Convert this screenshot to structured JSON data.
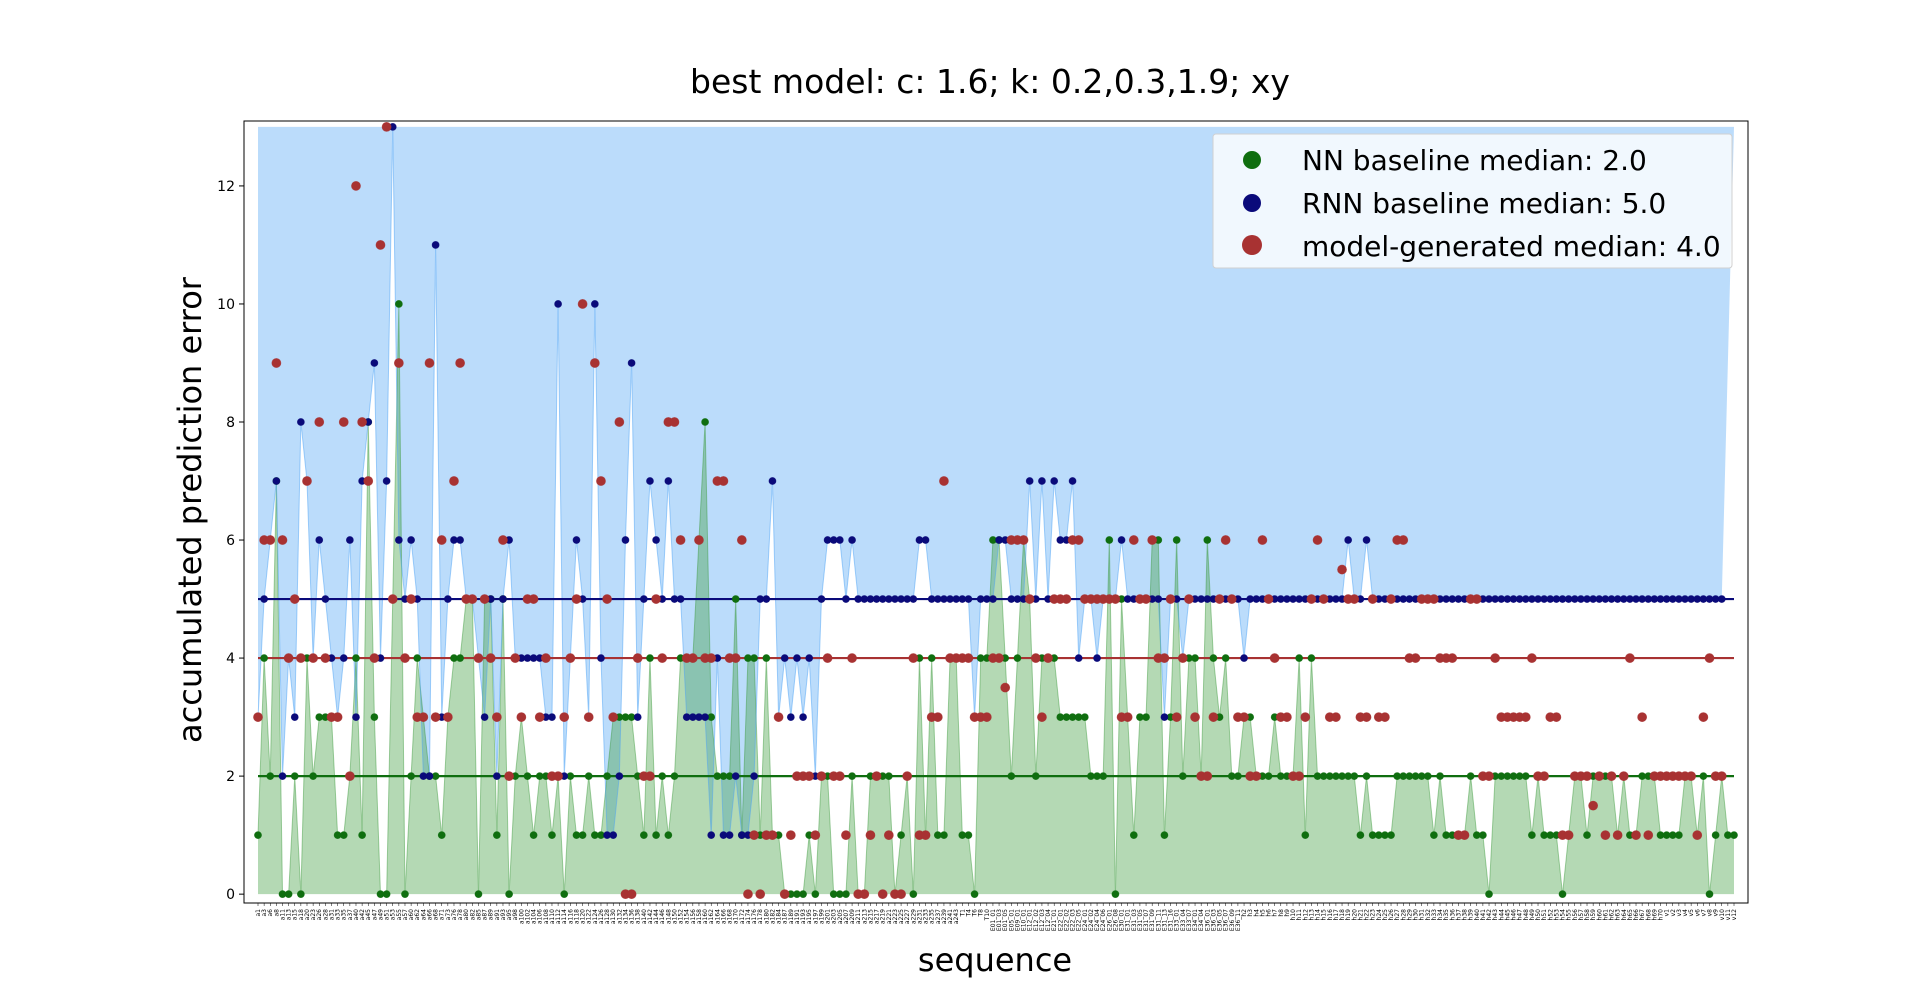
{
  "chart_data": {
    "type": "scatter",
    "title": "best model: c: 1.6; k: 0.2,0.3,1.9; xy",
    "xlabel": "sequence",
    "ylabel": "accumulated prediction error",
    "ylim": [
      -0.15,
      13.1
    ],
    "yticks": [
      0,
      2,
      4,
      6,
      8,
      10,
      12
    ],
    "fill_top": 13,
    "grid": false,
    "legend_position": "top-right",
    "categories": [
      "a1",
      "a3",
      "a6",
      "a8",
      "a11",
      "a13",
      "a15",
      "a18",
      "a20",
      "a23",
      "a26",
      "a28",
      "a31",
      "a33",
      "a35",
      "a37",
      "a40",
      "a42",
      "a45",
      "a47",
      "a49",
      "a51",
      "a53",
      "a55",
      "a57",
      "a60",
      "a62",
      "a64",
      "a66",
      "a68",
      "a71",
      "a73",
      "a76",
      "a78",
      "a80",
      "a82",
      "a85",
      "a87",
      "a89",
      "a91",
      "a93",
      "a95",
      "a98",
      "a100",
      "a102",
      "a104",
      "a106",
      "a108",
      "a110",
      "a112",
      "a114",
      "a116",
      "a118",
      "a120",
      "a122",
      "a124",
      "a126",
      "a128",
      "a130",
      "a132",
      "a134",
      "a136",
      "a138",
      "a140",
      "a142",
      "a144",
      "a146",
      "a148",
      "a150",
      "a152",
      "a154",
      "a156",
      "a158",
      "a160",
      "a162",
      "a164",
      "a166",
      "a168",
      "a170",
      "a172",
      "a174",
      "a176",
      "a178",
      "a180",
      "a182",
      "a184",
      "a187",
      "a189",
      "a191",
      "a193",
      "a195",
      "a197",
      "a199",
      "a201",
      "a203",
      "a205",
      "a207",
      "a209",
      "a211",
      "a213",
      "a215",
      "a217",
      "a219",
      "a221",
      "a223",
      "a225",
      "a227",
      "a229",
      "a231",
      "a233",
      "a235",
      "a237",
      "a239",
      "a241",
      "a243",
      "T1",
      "T4",
      "T6",
      "T8",
      "T10",
      "E01_01",
      "E01_03",
      "E01_05",
      "E05_01",
      "E09_01",
      "E10_01",
      "E12_01",
      "E12_02",
      "E12_03",
      "E12_04",
      "E21_01",
      "E22_01",
      "E22_02",
      "E22_03",
      "E22_05",
      "E24_01",
      "E24_02",
      "E24_04",
      "E24_06",
      "E26_01",
      "E26_08",
      "E30_01",
      "E31_01",
      "E31_03",
      "E31_05",
      "E31_07",
      "E31_09",
      "E31_11",
      "E31_13",
      "E31_16",
      "E33_01",
      "E33_04",
      "E33_07",
      "E34_01",
      "E34_04",
      "E36_01",
      "E36_03",
      "E36_05",
      "E36_07",
      "E36_09",
      "E36_11",
      "h2",
      "h3",
      "h4",
      "h5",
      "h6",
      "h7",
      "h8",
      "h9",
      "h10",
      "h11",
      "h12",
      "h13",
      "h14",
      "h15",
      "h16",
      "h17",
      "h18",
      "h19",
      "h20",
      "h21",
      "h22",
      "h23",
      "h24",
      "h25",
      "h26",
      "h27",
      "h28",
      "h29",
      "h30",
      "h31",
      "h32",
      "h33",
      "h34",
      "h35",
      "h36",
      "h37",
      "h38",
      "h39",
      "h40",
      "h41",
      "h42",
      "h43",
      "h44",
      "h45",
      "h46",
      "h47",
      "h48",
      "h49",
      "h50",
      "h51",
      "h52",
      "h53",
      "h54",
      "h55",
      "h56",
      "h57",
      "h58",
      "h59",
      "h60",
      "h61",
      "h62",
      "h63",
      "h64",
      "h65",
      "h66",
      "h67",
      "h68",
      "h69",
      "h70",
      "v1",
      "v2",
      "v3",
      "v4",
      "v5",
      "v6",
      "v7",
      "v8",
      "v9",
      "v10",
      "v11",
      "v12"
    ],
    "series": [
      {
        "name": "NN baseline median: 2.0",
        "color": "#0f6e0f",
        "fill": "#3a9a3a",
        "median": 2,
        "values": [
          1,
          4,
          2,
          7,
          0,
          0,
          2,
          0,
          4,
          2,
          3,
          3,
          3,
          1,
          1,
          2,
          4,
          1,
          8,
          3,
          0,
          0,
          5,
          10,
          0,
          2,
          4,
          3,
          2,
          2,
          1,
          3,
          4,
          4,
          5,
          5,
          0,
          5,
          5,
          1,
          5,
          0,
          2,
          3,
          2,
          1,
          2,
          2,
          1,
          2,
          0,
          2,
          1,
          1,
          2,
          1,
          1,
          2,
          3,
          3,
          3,
          3,
          2,
          1,
          4,
          1,
          2,
          1,
          2,
          4,
          4,
          4,
          6,
          8,
          3,
          2,
          2,
          2,
          5,
          1,
          4,
          4,
          1,
          4,
          1,
          1,
          0,
          0,
          0,
          0,
          1,
          0,
          2,
          2,
          0,
          0,
          0,
          2,
          0,
          0,
          2,
          2,
          2,
          2,
          0,
          1,
          2,
          0,
          4,
          1,
          4,
          1,
          1,
          4,
          4,
          1,
          1,
          0,
          4,
          4,
          6,
          6,
          4,
          2,
          4,
          6,
          5,
          2,
          4,
          4,
          4,
          3,
          3,
          3,
          3,
          3,
          2,
          2,
          2,
          6,
          0,
          5,
          3,
          1,
          3,
          3,
          6,
          6,
          1,
          3,
          6,
          2,
          4,
          4,
          2,
          6,
          4,
          3,
          4,
          2,
          2,
          3,
          3,
          2,
          2,
          2,
          3,
          2,
          2,
          2,
          4,
          1,
          4,
          2,
          2,
          2,
          2,
          2,
          2,
          2,
          1,
          2,
          1,
          1,
          1,
          1,
          2,
          2,
          2,
          2,
          2,
          2,
          1,
          2,
          1,
          1,
          1,
          1,
          2,
          1,
          1,
          0,
          2,
          2,
          2,
          2,
          2,
          2,
          1,
          2,
          1,
          1,
          1,
          0,
          1,
          2,
          2,
          1,
          2,
          2,
          2,
          2,
          1,
          2,
          1,
          1,
          2,
          2,
          2,
          1,
          1,
          1,
          1,
          2,
          2,
          1,
          2,
          0,
          1,
          2,
          1,
          1
        ]
      },
      {
        "name": "RNN baseline median: 5.0",
        "color": "#0a0a7a",
        "fill": "#4da3f5",
        "median": 5,
        "values": [
          3,
          5,
          6,
          7,
          2,
          4,
          3,
          8,
          7,
          4,
          6,
          5,
          4,
          3,
          4,
          6,
          3,
          7,
          8,
          9,
          4,
          7,
          13,
          6,
          5,
          6,
          5,
          2,
          2,
          11,
          3,
          5,
          6,
          6,
          5,
          5,
          4,
          3,
          5,
          2,
          5,
          6,
          4,
          4,
          4,
          4,
          4,
          3,
          3,
          10,
          2,
          4,
          6,
          5,
          3,
          10,
          4,
          1,
          1,
          2,
          6,
          9,
          3,
          5,
          7,
          6,
          5,
          7,
          5,
          5,
          3,
          3,
          3,
          3,
          1,
          4,
          1,
          1,
          2,
          1,
          1,
          2,
          5,
          5,
          7,
          3,
          4,
          3,
          4,
          3,
          4,
          2,
          5,
          6,
          6,
          6,
          5,
          6,
          5,
          5,
          5,
          5,
          5,
          5,
          5,
          5,
          5,
          5,
          6,
          6,
          5,
          5,
          5,
          5,
          5,
          5,
          5,
          3,
          5,
          5,
          5,
          6,
          6,
          5,
          5,
          5,
          7,
          5,
          7,
          5,
          7,
          6,
          6,
          7,
          4,
          5,
          5,
          4,
          5,
          5,
          5,
          6,
          5,
          5,
          5,
          5,
          5,
          5,
          3,
          5,
          5,
          4,
          5,
          5,
          5,
          5,
          5,
          5,
          5,
          5,
          5,
          4,
          5,
          5,
          5,
          5,
          5,
          5,
          5,
          5,
          5,
          5,
          5,
          5,
          5,
          5,
          5,
          5,
          6,
          5,
          5,
          6,
          5,
          5,
          5,
          5,
          5,
          5,
          5,
          5,
          5,
          5,
          5,
          5,
          5,
          5,
          5,
          5,
          5,
          5,
          5,
          5,
          5,
          5,
          5,
          5,
          5,
          5,
          5,
          5,
          5,
          5,
          5,
          5,
          5,
          5,
          5,
          5,
          5,
          5,
          5,
          5,
          5,
          5,
          5,
          5,
          5,
          5,
          5,
          5,
          5,
          5,
          5,
          5,
          5,
          5,
          5,
          5,
          5,
          5
        ]
      },
      {
        "name": "model-generated median: 4.0",
        "color": "#a83232",
        "fill": "",
        "median": 4,
        "values": [
          3,
          6,
          6,
          9,
          6,
          4,
          5,
          4,
          7,
          4,
          8,
          4,
          3,
          3,
          8,
          2,
          12,
          8,
          7,
          4,
          11,
          13,
          5,
          9,
          4,
          5,
          3,
          3,
          9,
          3,
          6,
          3,
          7,
          9,
          5,
          5,
          4,
          5,
          4,
          3,
          6,
          2,
          4,
          3,
          5,
          5,
          3,
          4,
          2,
          2,
          3,
          4,
          5,
          10,
          3,
          9,
          7,
          5,
          3,
          8,
          0,
          0,
          4,
          2,
          2,
          5,
          4,
          8,
          8,
          6,
          4,
          4,
          6,
          4,
          4,
          7,
          7,
          4,
          4,
          6,
          0,
          1,
          0,
          1,
          1,
          3,
          0,
          1,
          2,
          2,
          2,
          1,
          2,
          4,
          2,
          2,
          1,
          4,
          0,
          0,
          1,
          2,
          0,
          1,
          0,
          0,
          2,
          4,
          1,
          1,
          3,
          3,
          7,
          4,
          4,
          4,
          4,
          3,
          3,
          3,
          4,
          4,
          3.5,
          6,
          6,
          6,
          5,
          4,
          3,
          4,
          5,
          5,
          5,
          6,
          6,
          5,
          5,
          5,
          5,
          5,
          5,
          3,
          3,
          6,
          5,
          5,
          6,
          4,
          4,
          5,
          3,
          4,
          5,
          3,
          2,
          2,
          3,
          5,
          6,
          5,
          3,
          3,
          2,
          2,
          6,
          5,
          4,
          3,
          3,
          2,
          2,
          3,
          5,
          6,
          5,
          3,
          3,
          5.5,
          5,
          5,
          3,
          3,
          5,
          3,
          3,
          5,
          6,
          6,
          4,
          4,
          5,
          5,
          5,
          4,
          4,
          4,
          1,
          1,
          5,
          5,
          2,
          2,
          4,
          3,
          3,
          3,
          3,
          3,
          4,
          2,
          2,
          3,
          3,
          1,
          1,
          2,
          2,
          2,
          1.5,
          2,
          1,
          2,
          1,
          2,
          4,
          1,
          3,
          1,
          2,
          2,
          2,
          2,
          2,
          2,
          2,
          1,
          3,
          4,
          2,
          2
        ]
      }
    ]
  }
}
